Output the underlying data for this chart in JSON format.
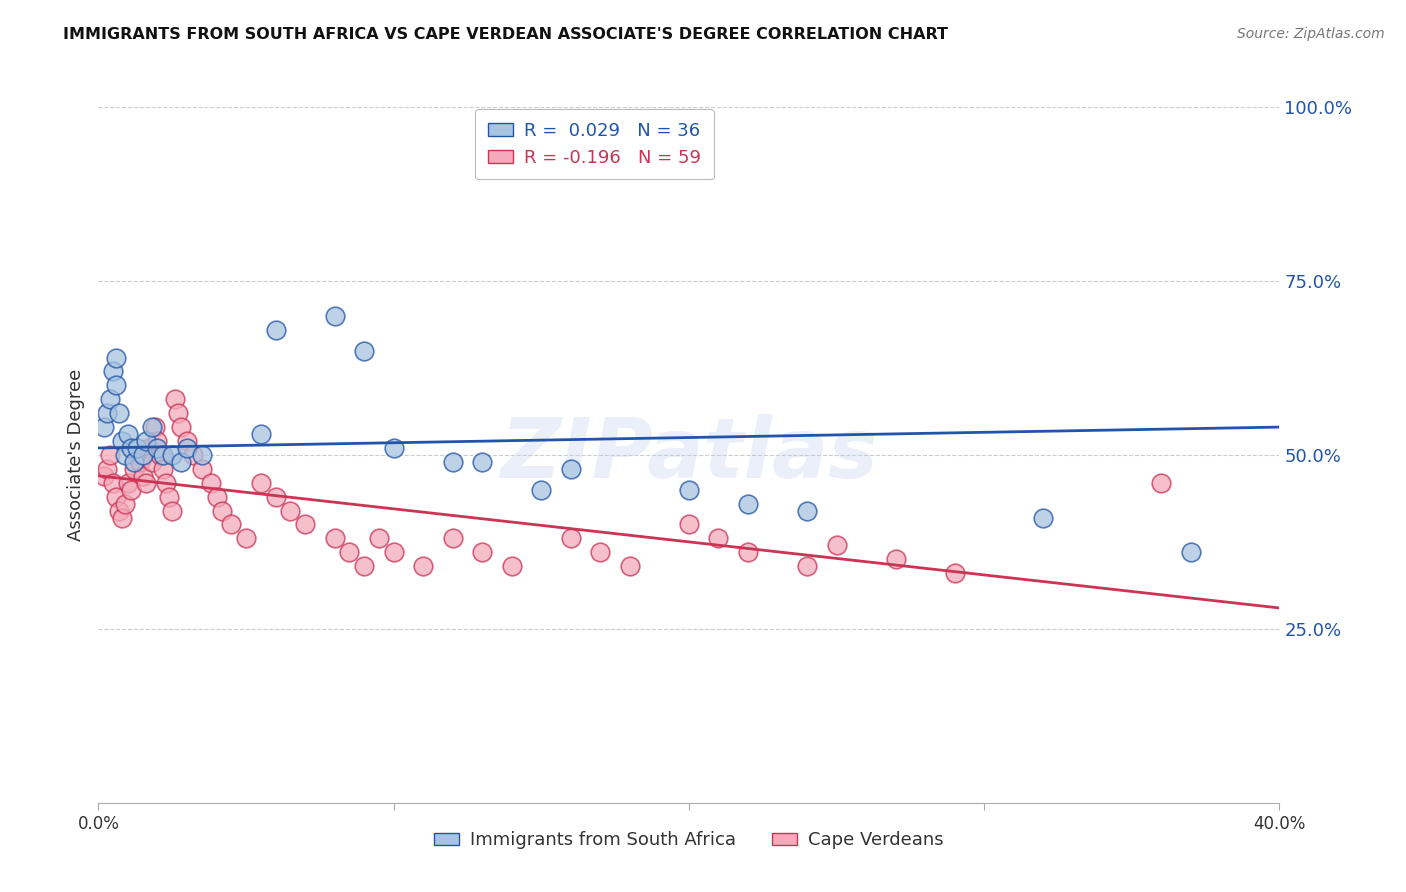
{
  "title": "IMMIGRANTS FROM SOUTH AFRICA VS CAPE VERDEAN ASSOCIATE'S DEGREE CORRELATION CHART",
  "source": "Source: ZipAtlas.com",
  "ylabel": "Associate's Degree",
  "right_yticks": [
    25.0,
    50.0,
    75.0,
    100.0
  ],
  "watermark": "ZIPatlas",
  "legend_blue_label": "Immigrants from South Africa",
  "legend_pink_label": "Cape Verdeans",
  "blue_color": "#A8C4E0",
  "pink_color": "#F4AABB",
  "line_blue_color": "#2255AA",
  "line_pink_color": "#CC3355",
  "blue_scatter_x": [
    0.002,
    0.003,
    0.004,
    0.005,
    0.006,
    0.006,
    0.007,
    0.008,
    0.009,
    0.01,
    0.011,
    0.012,
    0.013,
    0.015,
    0.016,
    0.018,
    0.02,
    0.022,
    0.025,
    0.028,
    0.03,
    0.035,
    0.055,
    0.06,
    0.08,
    0.09,
    0.1,
    0.12,
    0.13,
    0.15,
    0.16,
    0.2,
    0.22,
    0.24,
    0.32,
    0.37
  ],
  "blue_scatter_y": [
    0.54,
    0.56,
    0.58,
    0.62,
    0.64,
    0.6,
    0.56,
    0.52,
    0.5,
    0.53,
    0.51,
    0.49,
    0.51,
    0.5,
    0.52,
    0.54,
    0.51,
    0.5,
    0.5,
    0.49,
    0.51,
    0.5,
    0.53,
    0.68,
    0.7,
    0.65,
    0.51,
    0.49,
    0.49,
    0.45,
    0.48,
    0.45,
    0.43,
    0.42,
    0.41,
    0.36
  ],
  "pink_scatter_x": [
    0.002,
    0.003,
    0.004,
    0.005,
    0.006,
    0.007,
    0.008,
    0.009,
    0.01,
    0.011,
    0.012,
    0.013,
    0.014,
    0.015,
    0.016,
    0.017,
    0.018,
    0.019,
    0.02,
    0.021,
    0.022,
    0.023,
    0.024,
    0.025,
    0.026,
    0.027,
    0.028,
    0.03,
    0.032,
    0.035,
    0.038,
    0.04,
    0.042,
    0.045,
    0.05,
    0.055,
    0.06,
    0.065,
    0.07,
    0.08,
    0.085,
    0.09,
    0.095,
    0.1,
    0.11,
    0.12,
    0.13,
    0.14,
    0.16,
    0.17,
    0.18,
    0.2,
    0.21,
    0.22,
    0.24,
    0.25,
    0.27,
    0.29,
    0.36
  ],
  "pink_scatter_y": [
    0.47,
    0.48,
    0.5,
    0.46,
    0.44,
    0.42,
    0.41,
    0.43,
    0.46,
    0.45,
    0.48,
    0.5,
    0.49,
    0.47,
    0.46,
    0.51,
    0.49,
    0.54,
    0.52,
    0.5,
    0.48,
    0.46,
    0.44,
    0.42,
    0.58,
    0.56,
    0.54,
    0.52,
    0.5,
    0.48,
    0.46,
    0.44,
    0.42,
    0.4,
    0.38,
    0.46,
    0.44,
    0.42,
    0.4,
    0.38,
    0.36,
    0.34,
    0.38,
    0.36,
    0.34,
    0.38,
    0.36,
    0.34,
    0.38,
    0.36,
    0.34,
    0.4,
    0.38,
    0.36,
    0.34,
    0.37,
    0.35,
    0.33,
    0.46
  ],
  "blue_line_x0": 0.0,
  "blue_line_x1": 0.4,
  "blue_line_y0": 0.51,
  "blue_line_y1": 0.54,
  "pink_line_x0": 0.0,
  "pink_line_x1": 0.4,
  "pink_line_y0": 0.47,
  "pink_line_y1": 0.28,
  "xlim": [
    0.0,
    0.4
  ],
  "ylim": [
    0.0,
    1.0
  ],
  "figsize": [
    14.06,
    8.92
  ],
  "dpi": 100
}
